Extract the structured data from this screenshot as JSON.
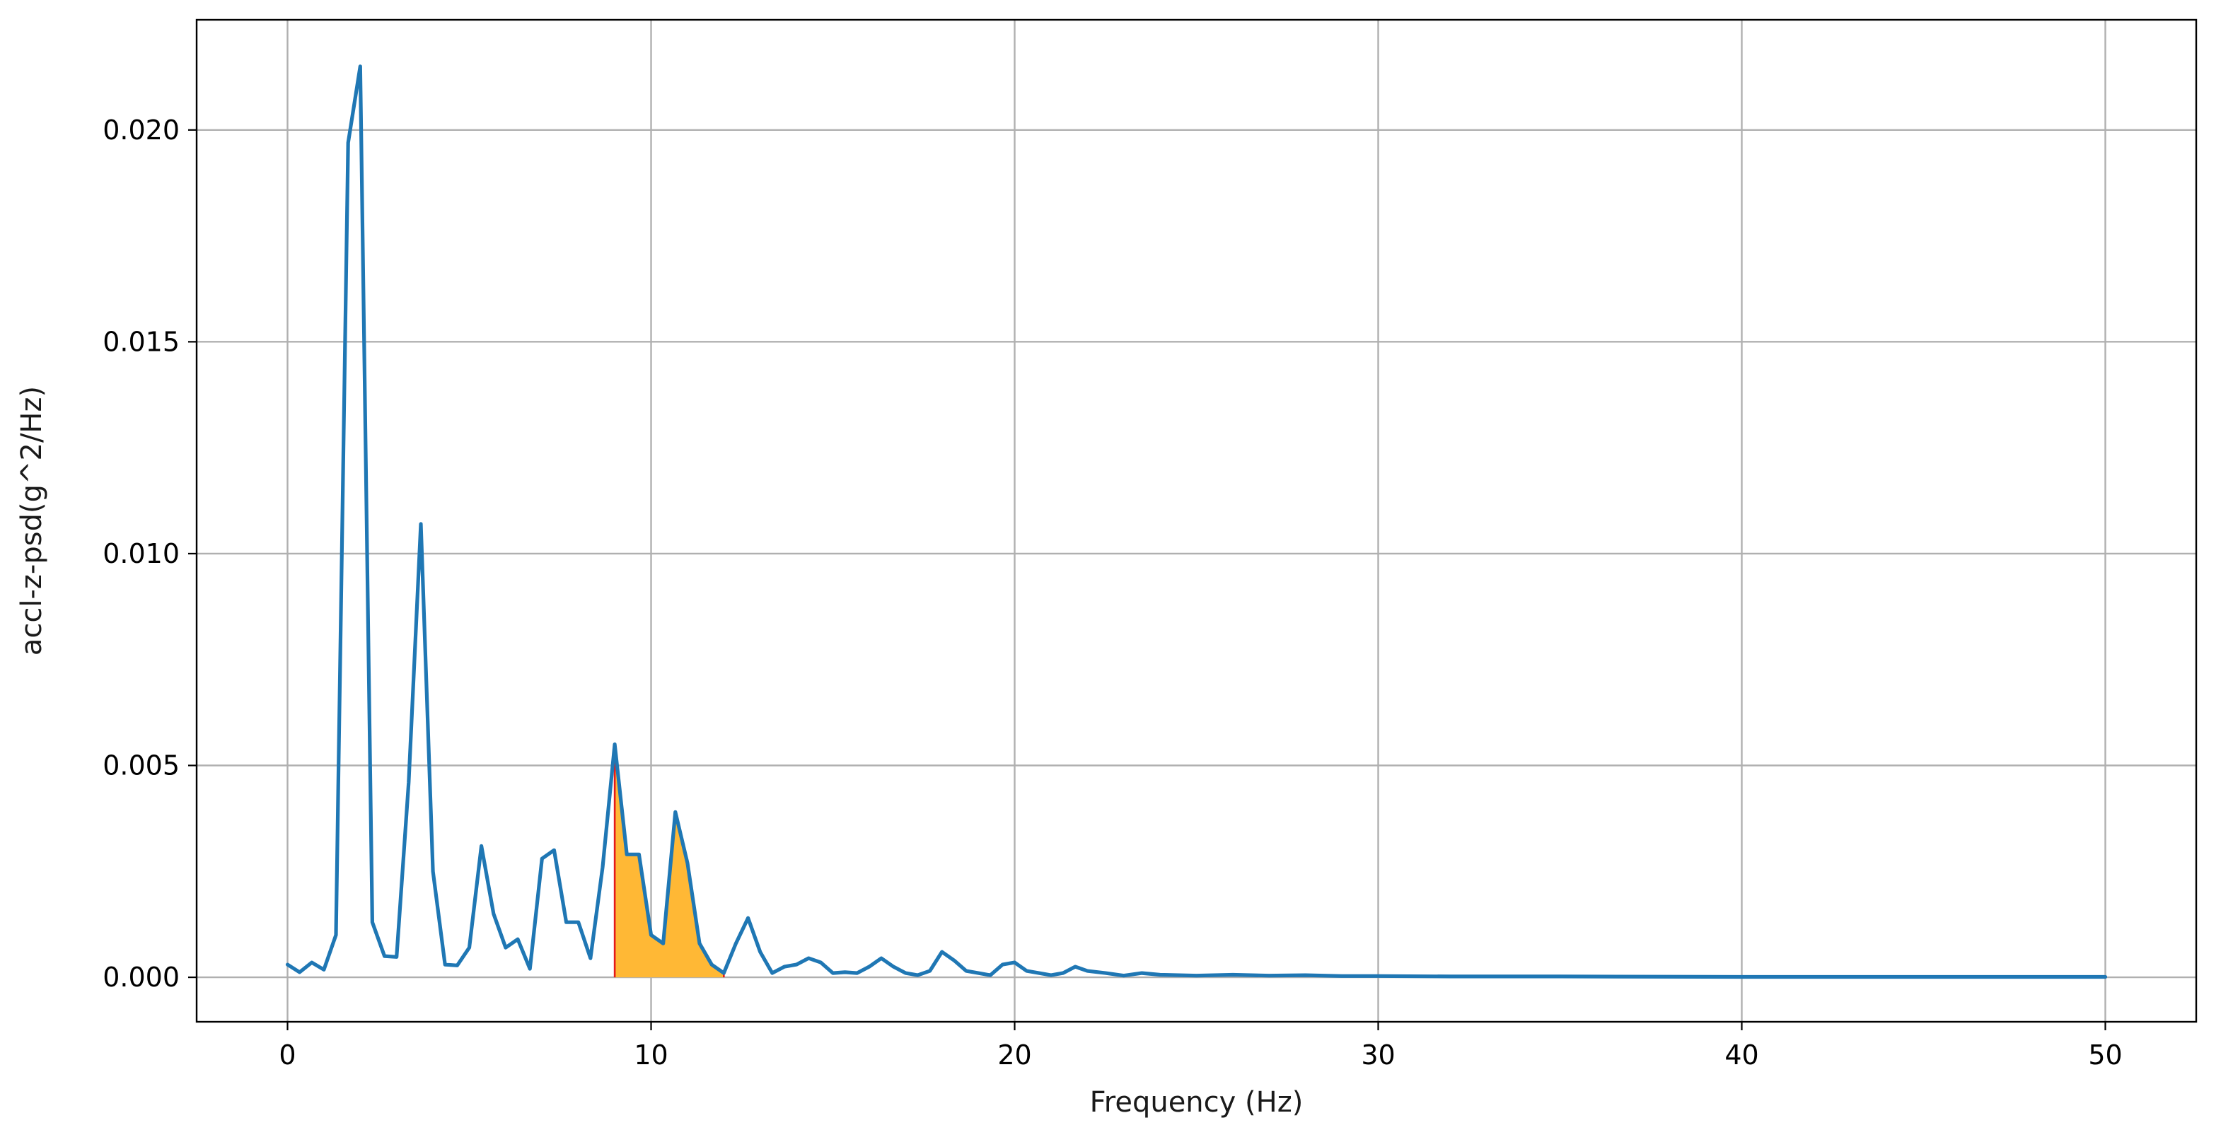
{
  "chart_data": {
    "type": "line",
    "title": "",
    "xlabel": "Frequency (Hz)",
    "ylabel": "accl-z-psd(g^2/Hz)",
    "xlim": [
      -2.5,
      52.5
    ],
    "ylim": [
      -0.00105,
      0.0226
    ],
    "xticks": [
      0,
      10,
      20,
      30,
      40,
      50
    ],
    "xtick_labels": [
      "0",
      "10",
      "20",
      "30",
      "40",
      "50"
    ],
    "yticks": [
      0.0,
      0.005,
      0.01,
      0.015,
      0.02
    ],
    "ytick_labels": [
      "0.000",
      "0.005",
      "0.010",
      "0.015",
      "0.020"
    ],
    "grid": true,
    "colors": {
      "line": "#1f77b4",
      "fill": "#ffb835",
      "fill_edge": "#e41a1c"
    },
    "highlight_band": {
      "x_start": 9.0,
      "x_end": 12.0
    },
    "series": [
      {
        "x": [
          0.0,
          0.333,
          0.667,
          1.0,
          1.333,
          1.667,
          2.0,
          2.333,
          2.667,
          3.0,
          3.333,
          3.667,
          4.0,
          4.333,
          4.667,
          5.0,
          5.333,
          5.667,
          6.0,
          6.333,
          6.667,
          7.0,
          7.333,
          7.667,
          8.0,
          8.333,
          8.667,
          9.0,
          9.333,
          9.667,
          10.0,
          10.333,
          10.667,
          11.0,
          11.333,
          11.667,
          12.0,
          12.333,
          12.667,
          13.0,
          13.333,
          13.667,
          14.0,
          14.333,
          14.667,
          15.0,
          15.333,
          15.667,
          16.0,
          16.333,
          16.667,
          17.0,
          17.333,
          17.667,
          18.0,
          18.333,
          18.667,
          19.0,
          19.333,
          19.667,
          20.0,
          20.333,
          20.667,
          21.0,
          21.333,
          21.667,
          22.0,
          22.5,
          23.0,
          23.5,
          24.0,
          25.0,
          26.0,
          27.0,
          28.0,
          29.0,
          30.0,
          32.0,
          35.0,
          40.0,
          45.0,
          50.0
        ],
        "values": [
          0.0003,
          0.00012,
          0.00035,
          0.00018,
          0.001,
          0.0197,
          0.0215,
          0.0013,
          0.0005,
          0.00048,
          0.0046,
          0.0107,
          0.0025,
          0.0003,
          0.00028,
          0.0007,
          0.0031,
          0.0015,
          0.0007,
          0.0009,
          0.0002,
          0.0028,
          0.003,
          0.0013,
          0.0013,
          0.00045,
          0.0026,
          0.0055,
          0.0029,
          0.0029,
          0.001,
          0.0008,
          0.0039,
          0.0027,
          0.0008,
          0.0003,
          0.0001,
          0.0008,
          0.0014,
          0.0006,
          0.0001,
          0.00025,
          0.0003,
          0.00045,
          0.00035,
          0.0001,
          0.00012,
          0.0001,
          0.00025,
          0.00045,
          0.00025,
          0.0001,
          5e-05,
          0.00015,
          0.0006,
          0.0004,
          0.00015,
          0.0001,
          5e-05,
          0.0003,
          0.00035,
          0.00015,
          0.0001,
          5e-05,
          0.0001,
          0.00025,
          0.00015,
          0.0001,
          4e-05,
          0.0001,
          6e-05,
          4e-05,
          6e-05,
          4e-05,
          5e-05,
          3e-05,
          3e-05,
          2e-05,
          2e-05,
          1e-05,
          1e-05,
          1e-05
        ]
      }
    ]
  }
}
